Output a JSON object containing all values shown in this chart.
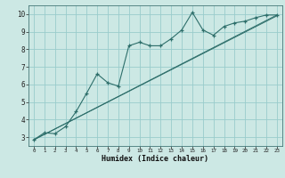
{
  "xlabel": "Humidex (Indice chaleur)",
  "bg_color": "#cce8e4",
  "grid_color": "#99cccc",
  "line_color": "#2d6e6a",
  "xlim": [
    -0.5,
    23.5
  ],
  "ylim": [
    2.5,
    10.5
  ],
  "xticks": [
    0,
    1,
    2,
    3,
    4,
    5,
    6,
    7,
    8,
    9,
    10,
    11,
    12,
    13,
    14,
    15,
    16,
    17,
    18,
    19,
    20,
    21,
    22,
    23
  ],
  "yticks": [
    3,
    4,
    5,
    6,
    7,
    8,
    9,
    10
  ],
  "main_x": [
    0,
    1,
    2,
    3,
    4,
    5,
    6,
    7,
    8,
    9,
    10,
    11,
    12,
    13,
    14,
    15,
    16,
    17,
    18,
    19,
    20,
    21,
    22,
    23
  ],
  "main_y": [
    2.85,
    3.25,
    3.2,
    3.6,
    4.45,
    5.5,
    6.6,
    6.1,
    5.9,
    8.2,
    8.4,
    8.2,
    8.2,
    8.6,
    9.1,
    10.1,
    9.1,
    8.8,
    9.3,
    9.5,
    9.6,
    9.8,
    9.95,
    9.95
  ],
  "line1_x": [
    0,
    23
  ],
  "line1_y": [
    2.85,
    9.9
  ],
  "line2_x": [
    0,
    23
  ],
  "line2_y": [
    2.85,
    9.95
  ]
}
